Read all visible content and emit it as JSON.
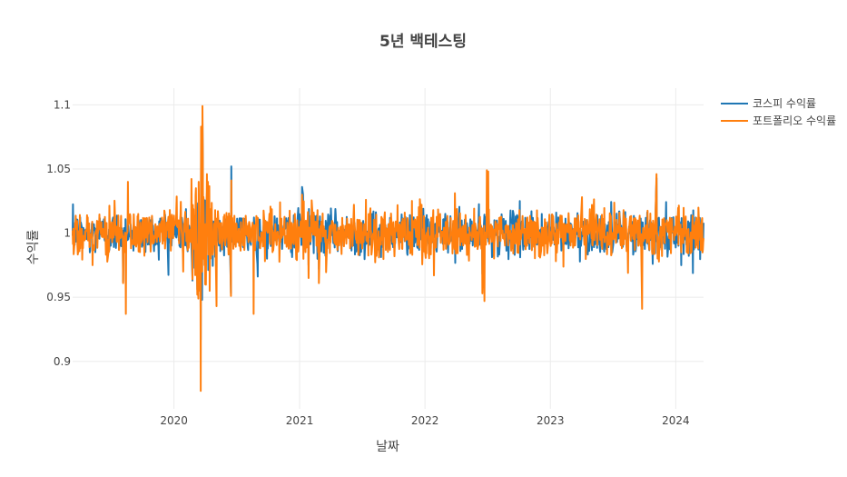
{
  "chart_data": {
    "type": "line",
    "title": "5년 백테스팅",
    "xlabel": "날짜",
    "ylabel": "수익률",
    "x_range": [
      "2019-03-12",
      "2024-03-22"
    ],
    "ylim": [
      0.863,
      1.113
    ],
    "x_ticks": [
      {
        "date": "2020-01-01",
        "label": "2020"
      },
      {
        "date": "2021-01-01",
        "label": "2021"
      },
      {
        "date": "2022-01-01",
        "label": "2022"
      },
      {
        "date": "2023-01-01",
        "label": "2023"
      },
      {
        "date": "2024-01-01",
        "label": "2024"
      }
    ],
    "y_ticks": [
      {
        "value": 0.9,
        "label": "0.9"
      },
      {
        "value": 0.95,
        "label": "0.95"
      },
      {
        "value": 1.0,
        "label": "1"
      },
      {
        "value": 1.05,
        "label": "1.05"
      },
      {
        "value": 1.1,
        "label": "1.1"
      }
    ],
    "grid": true,
    "legend_position": "top-right",
    "series": [
      {
        "name": "코스피 수익률",
        "color": "#1f77b4",
        "points": [
          [
            "2019-03-12",
            0.998
          ],
          [
            "2019-05-01",
            0.985
          ],
          [
            "2019-08-06",
            0.962
          ],
          [
            "2019-08-20",
            1.012
          ],
          [
            "2019-11-15",
            1.004
          ],
          [
            "2020-01-28",
            0.982
          ],
          [
            "2020-02-24",
            0.963
          ],
          [
            "2020-03-05",
            1.013
          ],
          [
            "2020-03-09",
            0.956
          ],
          [
            "2020-03-12",
            0.969
          ],
          [
            "2020-03-13",
            0.967
          ],
          [
            "2020-03-16",
            0.969
          ],
          [
            "2020-03-17",
            0.978
          ],
          [
            "2020-03-19",
            0.917
          ],
          [
            "2020-03-20",
            1.074
          ],
          [
            "2020-03-23",
            0.948
          ],
          [
            "2020-03-24",
            1.086
          ],
          [
            "2020-03-25",
            1.056
          ],
          [
            "2020-03-26",
            0.99
          ],
          [
            "2020-03-30",
            0.986
          ],
          [
            "2020-04-01",
            0.964
          ],
          [
            "2020-04-06",
            1.031
          ],
          [
            "2020-04-09",
            1.024
          ],
          [
            "2020-06-15",
            0.953
          ],
          [
            "2020-06-16",
            1.052
          ],
          [
            "2020-08-31",
            0.976
          ],
          [
            "2021-01-08",
            1.036
          ],
          [
            "2021-01-11",
            1.03
          ],
          [
            "2021-01-27",
            0.975
          ],
          [
            "2021-02-26",
            0.972
          ],
          [
            "2021-08-20",
            0.986
          ],
          [
            "2022-06-17",
            0.968
          ],
          [
            "2022-10-04",
            1.025
          ],
          [
            "2023-01-27",
            1.01
          ],
          [
            "2023-10-26",
            0.976
          ],
          [
            "2023-11-06",
            1.043
          ],
          [
            "2024-01-17",
            0.975
          ],
          [
            "2024-03-22",
            1.008
          ]
        ]
      },
      {
        "name": "포트폴리오 수익률",
        "color": "#ff7f0e",
        "points": [
          [
            "2019-03-12",
            1.002
          ],
          [
            "2019-05-09",
            0.975
          ],
          [
            "2019-08-06",
            0.961
          ],
          [
            "2019-08-14",
            0.937
          ],
          [
            "2019-08-20",
            1.04
          ],
          [
            "2019-12-20",
            1.018
          ],
          [
            "2020-01-28",
            0.97
          ],
          [
            "2020-02-24",
            0.964
          ],
          [
            "2020-03-05",
            1.035
          ],
          [
            "2020-03-09",
            0.952
          ],
          [
            "2020-03-12",
            0.949
          ],
          [
            "2020-03-13",
            1.04
          ],
          [
            "2020-03-16",
            0.962
          ],
          [
            "2020-03-17",
            0.955
          ],
          [
            "2020-03-19",
            0.877
          ],
          [
            "2020-03-20",
            1.083
          ],
          [
            "2020-03-23",
            0.97
          ],
          [
            "2020-03-24",
            1.099
          ],
          [
            "2020-03-25",
            1.06
          ],
          [
            "2020-03-26",
            0.98
          ],
          [
            "2020-03-30",
            0.975
          ],
          [
            "2020-04-01",
            0.96
          ],
          [
            "2020-04-06",
            1.046
          ],
          [
            "2020-04-09",
            1.04
          ],
          [
            "2020-05-04",
            0.943
          ],
          [
            "2020-06-15",
            0.951
          ],
          [
            "2020-06-16",
            1.041
          ],
          [
            "2020-08-20",
            0.937
          ],
          [
            "2020-11-05",
            1.024
          ],
          [
            "2021-01-08",
            1.03
          ],
          [
            "2021-01-27",
            0.965
          ],
          [
            "2021-02-26",
            0.961
          ],
          [
            "2021-07-13",
            1.026
          ],
          [
            "2021-08-20",
            0.981
          ],
          [
            "2022-01-27",
            0.967
          ],
          [
            "2022-06-17",
            0.953
          ],
          [
            "2022-06-23",
            0.947
          ],
          [
            "2022-06-30",
            1.049
          ],
          [
            "2022-07-04",
            1.048
          ],
          [
            "2023-01-09",
            1.013
          ],
          [
            "2023-03-10",
            0.99
          ],
          [
            "2023-04-03",
            1.028
          ],
          [
            "2023-05-02",
            1.022
          ],
          [
            "2023-08-15",
            0.969
          ],
          [
            "2023-09-25",
            0.941
          ],
          [
            "2023-11-06",
            1.046
          ],
          [
            "2023-12-15",
            1.012
          ],
          [
            "2024-01-17",
            0.985
          ],
          [
            "2024-03-22",
            0.996
          ]
        ]
      }
    ]
  }
}
